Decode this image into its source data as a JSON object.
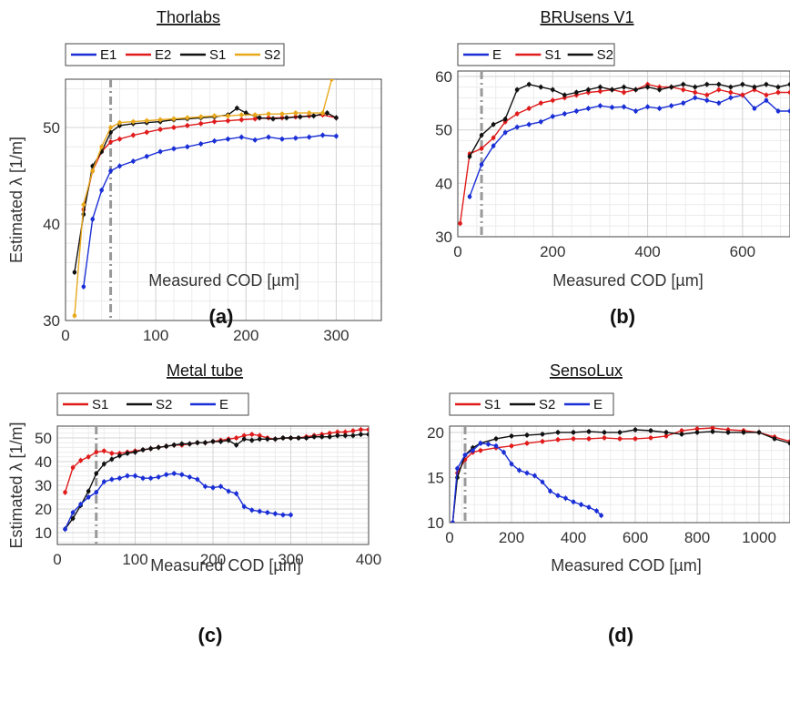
{
  "chart_data": [
    {
      "type": "line",
      "title": "Thorlabs",
      "panel_label": "(a)",
      "xlabel": "Measured COD [µm]",
      "ylabel": "Estimated λ [1/m]",
      "xlim": [
        0,
        350
      ],
      "ylim": [
        30,
        55
      ],
      "xticks": [
        0,
        100,
        200,
        300
      ],
      "yticks": [
        30,
        40,
        50
      ],
      "vline": 50,
      "legend_position": "top-left",
      "legend_entries": [
        "E1",
        "E2",
        "S1",
        "S2"
      ],
      "series": [
        {
          "name": "E1",
          "color": "#1a2fd6",
          "x": [
            20,
            30,
            40,
            50,
            60,
            75,
            90,
            105,
            120,
            135,
            150,
            165,
            180,
            195,
            210,
            225,
            240,
            255,
            270,
            285,
            300
          ],
          "y": [
            33.5,
            40.5,
            43.5,
            45.5,
            46.0,
            46.5,
            47.0,
            47.5,
            47.8,
            48.0,
            48.3,
            48.6,
            48.8,
            49.0,
            48.7,
            49.0,
            48.8,
            48.9,
            49.0,
            49.2,
            49.1
          ]
        },
        {
          "name": "E2",
          "color": "#e01b1b",
          "x": [
            20,
            30,
            40,
            50,
            60,
            75,
            90,
            105,
            120,
            135,
            150,
            165,
            180,
            195,
            210,
            225,
            240,
            255,
            270,
            285,
            300
          ],
          "y": [
            41.5,
            45.5,
            47.5,
            48.5,
            48.8,
            49.2,
            49.5,
            49.8,
            50.0,
            50.2,
            50.4,
            50.6,
            50.7,
            50.8,
            50.9,
            51.0,
            51.0,
            51.1,
            51.2,
            51.3,
            51.0
          ]
        },
        {
          "name": "S1",
          "color": "#111111",
          "x": [
            10,
            20,
            30,
            40,
            50,
            60,
            75,
            90,
            105,
            120,
            135,
            150,
            165,
            180,
            190,
            200,
            215,
            230,
            245,
            260,
            275,
            290,
            300
          ],
          "y": [
            35.0,
            41.0,
            46.0,
            47.5,
            49.5,
            50.2,
            50.4,
            50.5,
            50.6,
            50.8,
            50.9,
            51.0,
            51.1,
            51.3,
            52.0,
            51.5,
            51.0,
            50.9,
            51.0,
            51.1,
            51.2,
            51.5,
            51.0
          ]
        },
        {
          "name": "S2",
          "color": "#e8a81c",
          "x": [
            10,
            20,
            30,
            40,
            50,
            60,
            75,
            90,
            105,
            120,
            135,
            150,
            165,
            180,
            195,
            210,
            225,
            240,
            255,
            270,
            285,
            295
          ],
          "y": [
            30.5,
            42.0,
            45.5,
            48.0,
            50.0,
            50.5,
            50.6,
            50.7,
            50.8,
            50.9,
            51.0,
            51.1,
            51.2,
            51.2,
            51.3,
            51.3,
            51.4,
            51.4,
            51.5,
            51.5,
            51.5,
            55.0
          ]
        }
      ]
    },
    {
      "type": "line",
      "title": "BRUsens V1",
      "panel_label": "(b)",
      "xlabel": "Measured COD [µm]",
      "ylabel": "",
      "xlim": [
        0,
        700
      ],
      "ylim": [
        30,
        61
      ],
      "xticks": [
        0,
        200,
        400,
        600
      ],
      "yticks": [
        30,
        40,
        50,
        60
      ],
      "vline": 50,
      "legend_position": "top-left",
      "legend_entries": [
        "E",
        "S1",
        "S2"
      ],
      "series": [
        {
          "name": "E",
          "color": "#1a2fd6",
          "x": [
            25,
            50,
            75,
            100,
            125,
            150,
            175,
            200,
            225,
            250,
            275,
            300,
            325,
            350,
            375,
            400,
            425,
            450,
            475,
            500,
            525,
            550,
            575,
            600,
            625,
            650,
            675,
            700
          ],
          "y": [
            37.5,
            43.5,
            47.0,
            49.5,
            50.5,
            51.0,
            51.5,
            52.5,
            53.0,
            53.5,
            54.0,
            54.5,
            54.2,
            54.3,
            53.5,
            54.3,
            54.0,
            54.5,
            55.0,
            56.0,
            55.5,
            55.0,
            56.0,
            56.5,
            54.0,
            55.5,
            53.5,
            53.5
          ]
        },
        {
          "name": "S1",
          "color": "#e01b1b",
          "x": [
            5,
            25,
            50,
            75,
            100,
            125,
            150,
            175,
            200,
            225,
            250,
            275,
            300,
            325,
            350,
            375,
            400,
            425,
            450,
            475,
            500,
            525,
            550,
            575,
            600,
            625,
            650,
            675,
            700
          ],
          "y": [
            32.5,
            45.5,
            46.5,
            48.5,
            51.5,
            53.0,
            54.0,
            55.0,
            55.5,
            56.0,
            56.5,
            57.0,
            57.2,
            57.5,
            57.0,
            57.5,
            58.5,
            58.0,
            58.0,
            57.5,
            57.0,
            56.5,
            57.5,
            57.0,
            56.5,
            57.5,
            56.5,
            57.0,
            57.0
          ]
        },
        {
          "name": "S2",
          "color": "#111111",
          "x": [
            25,
            50,
            75,
            100,
            125,
            150,
            175,
            200,
            225,
            250,
            275,
            300,
            325,
            350,
            375,
            400,
            425,
            450,
            475,
            500,
            525,
            550,
            575,
            600,
            625,
            650,
            675,
            700
          ],
          "y": [
            45.0,
            49.0,
            51.0,
            52.0,
            57.5,
            58.5,
            58.0,
            57.5,
            56.5,
            57.0,
            57.5,
            58.0,
            57.5,
            58.0,
            57.5,
            58.0,
            57.5,
            58.0,
            58.5,
            58.0,
            58.5,
            58.5,
            58.0,
            58.5,
            58.0,
            58.5,
            58.0,
            58.5
          ]
        }
      ]
    },
    {
      "type": "line",
      "title": "Metal tube",
      "panel_label": "(c)",
      "xlabel": "Measured COD [µm]",
      "ylabel": "Estimated λ [1/m]",
      "xlim": [
        0,
        400
      ],
      "ylim": [
        5,
        55
      ],
      "xticks": [
        0,
        100,
        200,
        300,
        400
      ],
      "yticks": [
        10,
        20,
        30,
        40,
        50
      ],
      "vline": 50,
      "legend_position": "top-left",
      "legend_entries": [
        "S1",
        "S2",
        "E"
      ],
      "series": [
        {
          "name": "S1",
          "color": "#e01b1b",
          "x": [
            10,
            20,
            30,
            40,
            50,
            60,
            70,
            80,
            90,
            100,
            110,
            120,
            130,
            140,
            150,
            160,
            170,
            180,
            190,
            200,
            210,
            220,
            230,
            240,
            250,
            260,
            270,
            280,
            290,
            300,
            310,
            320,
            330,
            340,
            350,
            360,
            370,
            380,
            390,
            400
          ],
          "y": [
            27.0,
            37.5,
            40.5,
            42.0,
            44.0,
            44.5,
            43.5,
            43.5,
            44.0,
            44.5,
            45.0,
            45.5,
            46.0,
            46.5,
            47.0,
            47.0,
            47.5,
            48.0,
            48.0,
            48.5,
            49.0,
            49.5,
            50.0,
            51.0,
            51.5,
            51.0,
            50.0,
            49.5,
            50.0,
            50.0,
            50.0,
            50.5,
            51.0,
            51.5,
            52.0,
            52.5,
            52.5,
            53.0,
            53.5,
            53.5
          ]
        },
        {
          "name": "S2",
          "color": "#111111",
          "x": [
            10,
            20,
            30,
            40,
            50,
            60,
            70,
            80,
            90,
            100,
            110,
            120,
            130,
            140,
            150,
            160,
            170,
            180,
            190,
            200,
            210,
            220,
            230,
            240,
            250,
            260,
            270,
            280,
            290,
            300,
            310,
            320,
            330,
            340,
            350,
            360,
            370,
            380,
            390,
            400
          ],
          "y": [
            11.5,
            16.0,
            21.5,
            27.5,
            35.0,
            39.0,
            41.0,
            42.5,
            43.5,
            44.0,
            45.0,
            45.5,
            46.0,
            46.5,
            47.0,
            47.5,
            47.5,
            48.0,
            48.0,
            48.5,
            48.5,
            49.0,
            47.0,
            49.5,
            49.0,
            49.5,
            49.5,
            49.5,
            50.0,
            50.0,
            50.0,
            50.0,
            50.5,
            50.5,
            50.5,
            51.0,
            51.0,
            51.0,
            51.5,
            51.5
          ]
        },
        {
          "name": "E",
          "color": "#1a2fd6",
          "x": [
            10,
            20,
            30,
            40,
            50,
            60,
            70,
            80,
            90,
            100,
            110,
            120,
            130,
            140,
            150,
            160,
            170,
            180,
            190,
            200,
            210,
            220,
            230,
            240,
            250,
            260,
            270,
            280,
            290,
            300
          ],
          "y": [
            11.5,
            18.5,
            22.0,
            25.0,
            27.0,
            31.5,
            32.5,
            33.0,
            34.0,
            34.0,
            33.0,
            33.0,
            33.5,
            34.5,
            35.0,
            34.5,
            33.5,
            32.5,
            29.5,
            29.0,
            29.5,
            27.5,
            26.5,
            21.0,
            19.5,
            19.0,
            18.5,
            18.0,
            17.5,
            17.5
          ]
        }
      ]
    },
    {
      "type": "line",
      "title": "SensoLux",
      "panel_label": "(d)",
      "xlabel": "Measured COD [µm]",
      "ylabel": "",
      "xlim": [
        0,
        1100
      ],
      "ylim": [
        10,
        20.7
      ],
      "xticks": [
        0,
        200,
        400,
        600,
        800,
        1000
      ],
      "yticks": [
        10,
        15,
        20
      ],
      "vline": 50,
      "legend_position": "top-left",
      "legend_entries": [
        "S1",
        "S2",
        "E"
      ],
      "series": [
        {
          "name": "S1",
          "color": "#e01b1b",
          "x": [
            10,
            25,
            50,
            75,
            100,
            150,
            200,
            250,
            300,
            350,
            400,
            450,
            500,
            550,
            600,
            650,
            700,
            750,
            800,
            850,
            900,
            950,
            1000,
            1050,
            1100
          ],
          "y": [
            10.0,
            15.5,
            17.0,
            17.8,
            18.0,
            18.3,
            18.5,
            18.8,
            19.0,
            19.2,
            19.3,
            19.3,
            19.4,
            19.3,
            19.3,
            19.4,
            19.6,
            20.2,
            20.4,
            20.5,
            20.3,
            20.2,
            20.0,
            19.5,
            19.0
          ]
        },
        {
          "name": "S2",
          "color": "#111111",
          "x": [
            10,
            25,
            50,
            75,
            100,
            150,
            200,
            250,
            300,
            350,
            400,
            450,
            500,
            550,
            600,
            650,
            700,
            750,
            800,
            850,
            900,
            950,
            1000,
            1050,
            1100
          ],
          "y": [
            10.0,
            15.0,
            17.5,
            18.3,
            18.8,
            19.3,
            19.6,
            19.7,
            19.8,
            20.0,
            20.0,
            20.1,
            20.0,
            20.0,
            20.3,
            20.2,
            20.0,
            19.8,
            20.0,
            20.1,
            20.0,
            20.0,
            20.0,
            19.3,
            18.8
          ]
        },
        {
          "name": "E",
          "color": "#1a2fd6",
          "x": [
            10,
            25,
            50,
            75,
            100,
            125,
            150,
            175,
            200,
            225,
            250,
            275,
            300,
            325,
            350,
            375,
            400,
            425,
            450,
            475,
            490
          ],
          "y": [
            10.0,
            16.0,
            17.5,
            18.0,
            18.8,
            18.7,
            18.5,
            17.8,
            16.5,
            15.8,
            15.5,
            15.2,
            14.5,
            13.5,
            13.0,
            12.7,
            12.3,
            12.0,
            11.7,
            11.3,
            10.8
          ]
        }
      ]
    }
  ]
}
